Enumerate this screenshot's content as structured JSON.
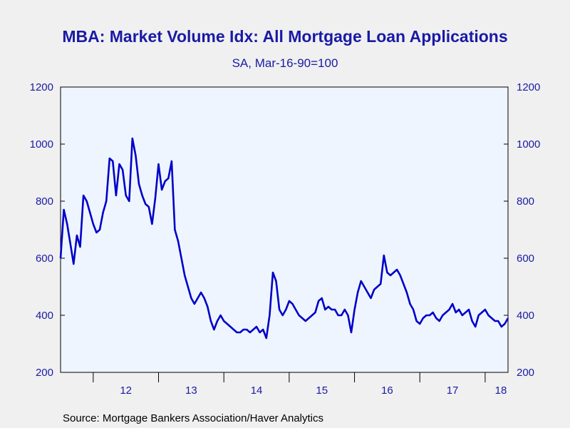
{
  "title": "MBA: Market Volume Idx: All Mortgage Loan Applications",
  "subtitle": "SA, Mar-16-90=100",
  "source": "Source:  Mortgage Bankers Association/Haver Analytics",
  "colors": {
    "line": "#0000c8",
    "text": "#1a1aa6",
    "plot_bg": "#eef5ff",
    "page_bg": "#f0f0f0"
  },
  "chart_data": {
    "type": "line",
    "title": "MBA: Market Volume Idx: All Mortgage Loan Applications",
    "subtitle": "SA, Mar-16-90=100",
    "ylim": [
      200,
      1200
    ],
    "y_ticks": [
      200,
      400,
      600,
      800,
      1000,
      1200
    ],
    "y_axis_both_sides": true,
    "xlim": [
      2011.5,
      2018.35
    ],
    "x_tick_labels": [
      {
        "label": "12",
        "x": 2012.5
      },
      {
        "label": "13",
        "x": 2013.5
      },
      {
        "label": "14",
        "x": 2014.5
      },
      {
        "label": "15",
        "x": 2015.5
      },
      {
        "label": "16",
        "x": 2016.5
      },
      {
        "label": "17",
        "x": 2017.5
      },
      {
        "label": "18",
        "x": 2018.5
      }
    ],
    "x_year_boundaries": [
      2012,
      2013,
      2014,
      2015,
      2016,
      2017,
      2018
    ],
    "grid": false,
    "series": [
      {
        "x": [
          2011.5,
          2011.55,
          2011.6,
          2011.65,
          2011.7,
          2011.75,
          2011.8,
          2011.85,
          2011.9,
          2011.95,
          2012.0,
          2012.05,
          2012.1,
          2012.15,
          2012.2,
          2012.25,
          2012.3,
          2012.35,
          2012.4,
          2012.45,
          2012.5,
          2012.55,
          2012.6,
          2012.65,
          2012.7,
          2012.75,
          2012.8,
          2012.85,
          2012.9,
          2012.95,
          2013.0,
          2013.05,
          2013.1,
          2013.15,
          2013.2,
          2013.25,
          2013.3,
          2013.35,
          2013.4,
          2013.45,
          2013.5,
          2013.55,
          2013.6,
          2013.65,
          2013.7,
          2013.75,
          2013.8,
          2013.85,
          2013.9,
          2013.95,
          2014.0,
          2014.05,
          2014.1,
          2014.15,
          2014.2,
          2014.25,
          2014.3,
          2014.35,
          2014.4,
          2014.45,
          2014.5,
          2014.55,
          2014.6,
          2014.65,
          2014.7,
          2014.75,
          2014.8,
          2014.85,
          2014.9,
          2014.95,
          2015.0,
          2015.05,
          2015.1,
          2015.15,
          2015.2,
          2015.25,
          2015.3,
          2015.35,
          2015.4,
          2015.45,
          2015.5,
          2015.55,
          2015.6,
          2015.65,
          2015.7,
          2015.75,
          2015.8,
          2015.85,
          2015.9,
          2015.95,
          2016.0,
          2016.05,
          2016.1,
          2016.15,
          2016.2,
          2016.25,
          2016.3,
          2016.35,
          2016.4,
          2016.45,
          2016.5,
          2016.55,
          2016.6,
          2016.65,
          2016.7,
          2016.75,
          2016.8,
          2016.85,
          2016.9,
          2016.95,
          2017.0,
          2017.05,
          2017.1,
          2017.15,
          2017.2,
          2017.25,
          2017.3,
          2017.35,
          2017.4,
          2017.45,
          2017.5,
          2017.55,
          2017.6,
          2017.65,
          2017.7,
          2017.75,
          2017.8,
          2017.85,
          2017.9,
          2017.95,
          2018.0,
          2018.05,
          2018.1,
          2018.15,
          2018.2,
          2018.25,
          2018.3,
          2018.35
        ],
        "values": [
          600,
          770,
          720,
          650,
          580,
          680,
          640,
          820,
          800,
          760,
          720,
          690,
          700,
          760,
          800,
          950,
          940,
          820,
          930,
          910,
          820,
          800,
          1020,
          960,
          860,
          820,
          790,
          780,
          720,
          810,
          930,
          840,
          870,
          880,
          940,
          700,
          660,
          600,
          540,
          500,
          460,
          440,
          460,
          480,
          460,
          430,
          380,
          350,
          380,
          400,
          380,
          370,
          360,
          350,
          340,
          340,
          350,
          350,
          340,
          350,
          360,
          340,
          350,
          320,
          400,
          550,
          520,
          420,
          400,
          420,
          450,
          440,
          420,
          400,
          390,
          380,
          390,
          400,
          410,
          450,
          460,
          420,
          430,
          420,
          420,
          400,
          400,
          420,
          400,
          340,
          420,
          480,
          520,
          500,
          480,
          460,
          490,
          500,
          510,
          610,
          550,
          540,
          550,
          560,
          540,
          510,
          480,
          440,
          420,
          380,
          370,
          390,
          400,
          400,
          410,
          390,
          380,
          400,
          410,
          420,
          440,
          410,
          420,
          400,
          410,
          420,
          380,
          360,
          400,
          410,
          420,
          400,
          390,
          380,
          380,
          360,
          370,
          390
        ]
      }
    ]
  }
}
